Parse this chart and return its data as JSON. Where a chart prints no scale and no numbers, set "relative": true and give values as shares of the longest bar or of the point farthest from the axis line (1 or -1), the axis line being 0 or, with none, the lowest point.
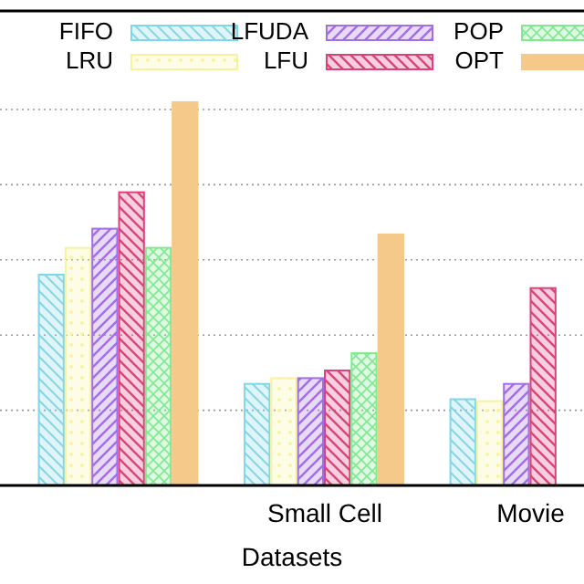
{
  "chart_data": {
    "type": "bar",
    "relative": true,
    "xlabel": "Datasets",
    "categories": [
      null,
      "Small Cell",
      "Movie"
    ],
    "grid": "y",
    "legend": "top",
    "series": [
      {
        "name": "FIFO",
        "color": "#7fd8e8",
        "values": [
          0.55,
          0.265,
          0.225
        ]
      },
      {
        "name": "LRU",
        "color": "#f6f2a0",
        "values": [
          0.62,
          0.28,
          0.22
        ]
      },
      {
        "name": "LFUDA",
        "color": "#a070e0",
        "values": [
          0.67,
          0.28,
          0.265
        ]
      },
      {
        "name": "LFU",
        "color": "#e0407a",
        "values": [
          0.765,
          0.3,
          0.515
        ]
      },
      {
        "name": "POP",
        "color": "#80e890",
        "values": [
          0.62,
          0.345,
          null
        ]
      },
      {
        "name": "OPT",
        "color": "#f5c98a",
        "values": [
          1,
          0.655,
          null
        ]
      }
    ]
  }
}
